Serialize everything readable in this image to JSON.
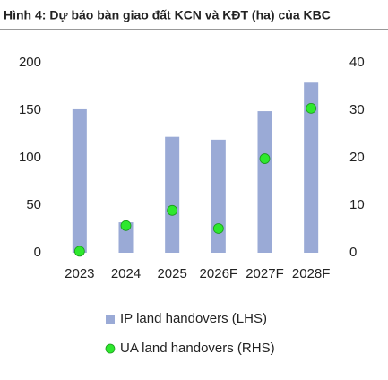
{
  "chart_data": {
    "type": "bar",
    "title": "Hình 4: Dự báo bàn giao đất KCN và KĐT (ha) của KBC",
    "categories": [
      "2023",
      "2024",
      "2025",
      "2026F",
      "2027F",
      "2028F"
    ],
    "series": [
      {
        "name": "IP land handovers (LHS)",
        "type": "bar",
        "color": "#9aaad6",
        "values": [
          151,
          32,
          122,
          119,
          149,
          179
        ]
      },
      {
        "name": "UA land handovers (RHS)",
        "type": "scatter",
        "axis": "y2",
        "color": "#2ee82e",
        "values": [
          0.3,
          5.7,
          8.9,
          5.1,
          19.8,
          30.4
        ]
      }
    ],
    "ylim": [
      0,
      200
    ],
    "yticks": [
      0,
      50,
      100,
      150,
      200
    ],
    "y2lim": [
      0,
      40
    ],
    "y2ticks": [
      0,
      10,
      20,
      30,
      40
    ],
    "legend": "bottom"
  }
}
